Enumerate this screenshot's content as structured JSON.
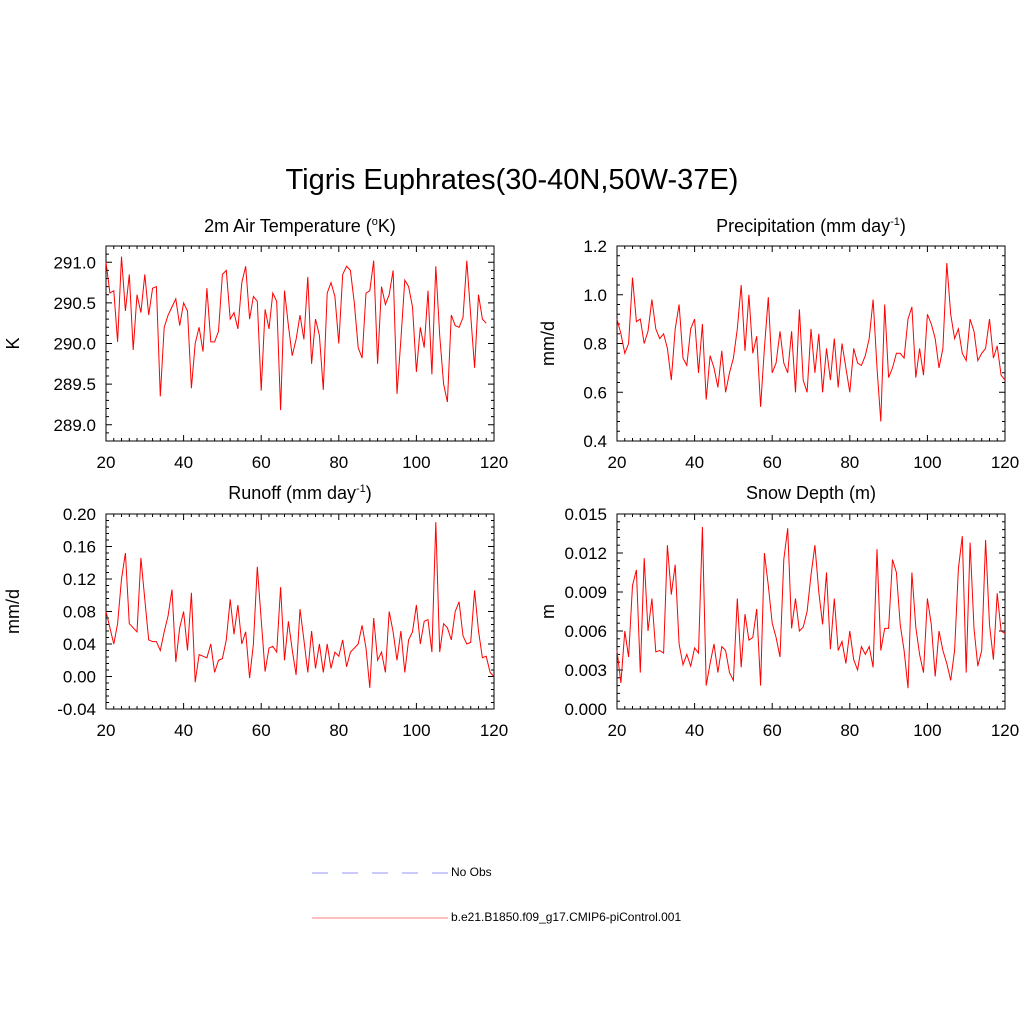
{
  "title": "Tigris Euphrates(30-40N,50W-37E)",
  "panels": [
    {
      "title_main": "2m Air Temperature (",
      "title_sup": "o",
      "title_rest": "K)"
    },
    {
      "title_main": "Precipitation (mm day",
      "title_sup": "-1",
      "title_rest": ")"
    },
    {
      "title_main": "Runoff (mm day",
      "title_sup": "-1",
      "title_rest": ")"
    },
    {
      "title_main": "Snow Depth (m)",
      "title_sup": "",
      "title_rest": ""
    }
  ],
  "legend": {
    "items": [
      {
        "label": "No Obs",
        "color": "#aaaaff",
        "dash": true
      },
      {
        "label": "b.e21.B1850.f09_g17.CMIP6-piControl.001",
        "color": "#ff9999",
        "dash": false
      }
    ]
  },
  "chart_data": [
    {
      "type": "line",
      "title": "2m Air Temperature (oK)",
      "ylabel": "K",
      "xlabel": "",
      "xlim": [
        20,
        120
      ],
      "ylim": [
        288.8,
        291.2
      ],
      "xticks": [
        20,
        40,
        60,
        80,
        100,
        120
      ],
      "yticks": [
        289.0,
        289.5,
        290.0,
        290.5,
        291.0
      ],
      "ytick_labels": [
        "289.0",
        "289.5",
        "290.0",
        "290.5",
        "291.0"
      ],
      "color": "#ff0000",
      "series": [
        {
          "name": "b.e21.B1850.f09_g17.CMIP6-piControl.001",
          "x_start": 20,
          "values": [
            291.0,
            290.62,
            290.65,
            290.02,
            291.07,
            290.4,
            290.85,
            289.92,
            290.6,
            290.38,
            290.85,
            290.35,
            290.68,
            290.7,
            289.35,
            290.2,
            290.35,
            290.45,
            290.55,
            290.22,
            290.5,
            290.4,
            289.45,
            290.0,
            290.2,
            289.9,
            290.68,
            290.02,
            290.02,
            290.15,
            290.85,
            290.9,
            290.3,
            290.38,
            290.18,
            290.75,
            290.95,
            290.3,
            290.58,
            290.52,
            289.42,
            290.42,
            290.18,
            290.62,
            290.52,
            289.18,
            290.65,
            290.22,
            289.85,
            290.05,
            290.35,
            290.05,
            290.82,
            289.75,
            290.3,
            290.1,
            289.43,
            290.62,
            290.75,
            290.58,
            290.0,
            290.85,
            290.95,
            290.9,
            290.5,
            289.95,
            289.82,
            290.62,
            290.65,
            291.02,
            289.75,
            290.7,
            290.48,
            290.6,
            290.9,
            289.38,
            290.05,
            290.78,
            290.7,
            290.45,
            289.65,
            290.2,
            289.95,
            290.65,
            289.62,
            290.95,
            290.1,
            289.5,
            289.28,
            290.35,
            290.22,
            290.2,
            290.32,
            291.02,
            290.35,
            289.7,
            290.6,
            290.3,
            290.25
          ]
        }
      ]
    },
    {
      "type": "line",
      "title": "Precipitation (mm day-1)",
      "ylabel": "mm/d",
      "xlabel": "",
      "xlim": [
        20,
        120
      ],
      "ylim": [
        0.4,
        1.2
      ],
      "xticks": [
        20,
        40,
        60,
        80,
        100,
        120
      ],
      "yticks": [
        0.4,
        0.6,
        0.8,
        1.0,
        1.2
      ],
      "ytick_labels": [
        "0.4",
        "0.6",
        "0.8",
        "1.0",
        "1.2"
      ],
      "color": "#ff0000",
      "series": [
        {
          "name": "b.e21.B1850.f09_g17.CMIP6-piControl.001",
          "x_start": 20,
          "values": [
            0.9,
            0.84,
            0.76,
            0.8,
            1.07,
            0.89,
            0.9,
            0.8,
            0.85,
            0.98,
            0.86,
            0.82,
            0.84,
            0.78,
            0.65,
            0.86,
            0.96,
            0.74,
            0.71,
            0.86,
            0.9,
            0.68,
            0.88,
            0.57,
            0.75,
            0.7,
            0.62,
            0.77,
            0.6,
            0.68,
            0.74,
            0.86,
            1.04,
            0.77,
            1.0,
            0.76,
            0.83,
            0.54,
            0.78,
            0.99,
            0.68,
            0.72,
            0.85,
            0.72,
            0.68,
            0.85,
            0.6,
            0.94,
            0.65,
            0.6,
            0.86,
            0.68,
            0.84,
            0.6,
            0.78,
            0.65,
            0.82,
            0.62,
            0.8,
            0.7,
            0.6,
            0.78,
            0.72,
            0.71,
            0.75,
            0.82,
            0.98,
            0.7,
            0.48,
            0.96,
            0.66,
            0.7,
            0.76,
            0.76,
            0.74,
            0.9,
            0.95,
            0.66,
            0.78,
            0.67,
            0.92,
            0.88,
            0.82,
            0.7,
            0.78,
            1.13,
            0.92,
            0.82,
            0.86,
            0.76,
            0.73,
            0.9,
            0.85,
            0.73,
            0.76,
            0.78,
            0.9,
            0.74,
            0.79,
            0.67,
            0.65
          ]
        }
      ]
    },
    {
      "type": "line",
      "title": "Runoff (mm day-1)",
      "ylabel": "mm/d",
      "xlabel": "",
      "xlim": [
        20,
        120
      ],
      "ylim": [
        -0.04,
        0.2
      ],
      "xticks": [
        20,
        40,
        60,
        80,
        100,
        120
      ],
      "yticks": [
        -0.04,
        0.0,
        0.04,
        0.08,
        0.12,
        0.16,
        0.2
      ],
      "ytick_labels": [
        "-0.04",
        "0.00",
        "0.04",
        "0.08",
        "0.12",
        "0.16",
        "0.20"
      ],
      "color": "#ff0000",
      "series": [
        {
          "name": "b.e21.B1850.f09_g17.CMIP6-piControl.001",
          "x_start": 20,
          "values": [
            0.08,
            0.06,
            0.04,
            0.065,
            0.12,
            0.152,
            0.065,
            0.06,
            0.055,
            0.146,
            0.095,
            0.045,
            0.043,
            0.043,
            0.032,
            0.055,
            0.075,
            0.107,
            0.018,
            0.06,
            0.08,
            0.032,
            0.103,
            -0.007,
            0.027,
            0.025,
            0.023,
            0.04,
            0.005,
            0.02,
            0.022,
            0.045,
            0.095,
            0.052,
            0.088,
            0.04,
            0.055,
            -0.002,
            0.04,
            0.135,
            0.07,
            0.006,
            0.035,
            0.037,
            0.03,
            0.11,
            0.02,
            0.068,
            0.033,
            0.002,
            0.083,
            0.045,
            0.005,
            0.056,
            0.01,
            0.04,
            0.005,
            0.04,
            0.01,
            0.03,
            0.025,
            0.045,
            0.012,
            0.03,
            0.035,
            0.04,
            0.063,
            0.035,
            -0.014,
            0.072,
            0.02,
            0.03,
            0.005,
            0.08,
            0.055,
            0.02,
            0.056,
            0.005,
            0.045,
            0.055,
            0.088,
            0.04,
            0.068,
            0.07,
            0.03,
            0.19,
            0.03,
            0.065,
            0.06,
            0.045,
            0.08,
            0.092,
            0.05,
            0.04,
            0.042,
            0.106,
            0.056,
            0.023,
            0.025,
            0.005,
            0.0
          ]
        }
      ]
    },
    {
      "type": "line",
      "title": "Snow Depth (m)",
      "ylabel": "m",
      "xlabel": "",
      "xlim": [
        20,
        120
      ],
      "ylim": [
        0.0,
        0.015
      ],
      "xticks": [
        20,
        40,
        60,
        80,
        100,
        120
      ],
      "yticks": [
        0.0,
        0.003,
        0.006,
        0.009,
        0.012,
        0.015
      ],
      "ytick_labels": [
        "0.000",
        "0.003",
        "0.006",
        "0.009",
        "0.012",
        "0.015"
      ],
      "color": "#ff0000",
      "series": [
        {
          "name": "b.e21.B1850.f09_g17.CMIP6-piControl.001",
          "x_start": 20,
          "values": [
            0.0045,
            0.002,
            0.006,
            0.004,
            0.0095,
            0.0107,
            0.0028,
            0.0116,
            0.006,
            0.0085,
            0.0044,
            0.0045,
            0.0043,
            0.0126,
            0.0088,
            0.0111,
            0.005,
            0.0034,
            0.0042,
            0.0033,
            0.0047,
            0.0043,
            0.014,
            0.0018,
            0.0035,
            0.005,
            0.0028,
            0.0048,
            0.0045,
            0.0028,
            0.0022,
            0.0085,
            0.0032,
            0.0073,
            0.0053,
            0.0055,
            0.0077,
            0.0018,
            0.012,
            0.0095,
            0.0066,
            0.0055,
            0.004,
            0.0115,
            0.0139,
            0.0062,
            0.0085,
            0.006,
            0.0063,
            0.0075,
            0.0103,
            0.0126,
            0.009,
            0.0065,
            0.0105,
            0.0046,
            0.0085,
            0.0045,
            0.0052,
            0.0035,
            0.006,
            0.0038,
            0.003,
            0.0048,
            0.0042,
            0.0048,
            0.0032,
            0.0123,
            0.0045,
            0.0062,
            0.0062,
            0.0115,
            0.0105,
            0.0065,
            0.0045,
            0.0016,
            0.0105,
            0.0063,
            0.0042,
            0.0028,
            0.0085,
            0.0065,
            0.0025,
            0.006,
            0.0045,
            0.0035,
            0.0022,
            0.0045,
            0.0108,
            0.0133,
            0.0028,
            0.0128,
            0.0062,
            0.0033,
            0.0045,
            0.013,
            0.0065,
            0.0038,
            0.0089,
            0.006,
            0.0058
          ]
        }
      ]
    }
  ]
}
